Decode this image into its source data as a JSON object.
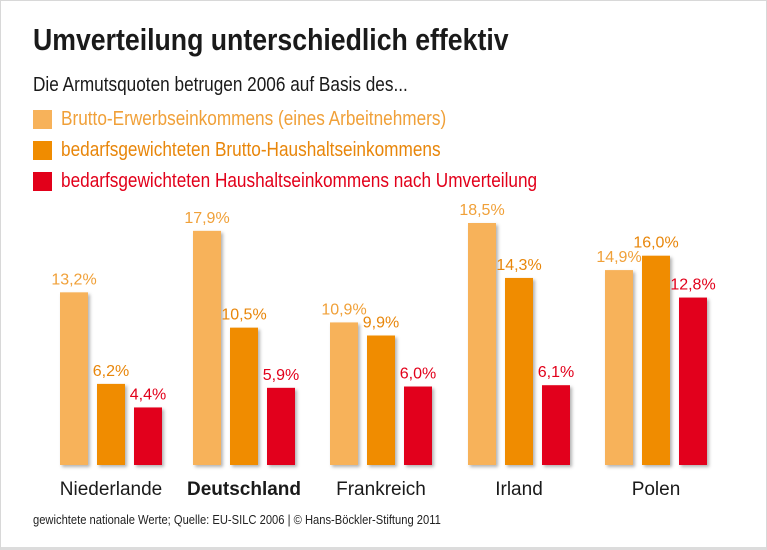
{
  "chart_data": {
    "type": "bar",
    "title": "Umverteilung unterschiedlich effektiv",
    "subtitle": "Die Armutsquoten betrugen 2006 auf Basis des...",
    "categories": [
      "Niederlande",
      "Deutschland",
      "Frankreich",
      "Irland",
      "Polen"
    ],
    "highlight_category": "Deutschland",
    "series": [
      {
        "name": "Brutto-Erwerbseinkommens (eines Arbeitnehmers)",
        "color": "#f7b25a",
        "label_color": "#f0a038",
        "values": [
          13.2,
          17.9,
          10.9,
          18.5,
          14.9
        ],
        "labels": [
          "13,2%",
          "17,9%",
          "10,9%",
          "18,5%",
          "14,9%"
        ]
      },
      {
        "name": "bedarfsgewichteten Brutto-Haushaltseinkommens",
        "color": "#f08c00",
        "label_color": "#e8860a",
        "values": [
          6.2,
          10.5,
          9.9,
          14.3,
          16.0
        ],
        "labels": [
          "6,2%",
          "10,5%",
          "9,9%",
          "14,3%",
          "16,0%"
        ]
      },
      {
        "name": "bedarfsgewichteten Haushaltseinkommens nach Umverteilung",
        "color": "#e2001a",
        "label_color": "#e2001a",
        "values": [
          4.4,
          5.9,
          6.0,
          6.1,
          12.8
        ],
        "labels": [
          "4,4%",
          "5,9%",
          "6,0%",
          "6,1%",
          "12,8%"
        ]
      }
    ],
    "unit": "%",
    "ylim": [
      0,
      18.5
    ],
    "grid": false,
    "legend": "top-left",
    "source": "gewichtete nationale Werte; Quelle: EU-SILC 2006 | © Hans-Böckler-Stiftung 2011"
  }
}
